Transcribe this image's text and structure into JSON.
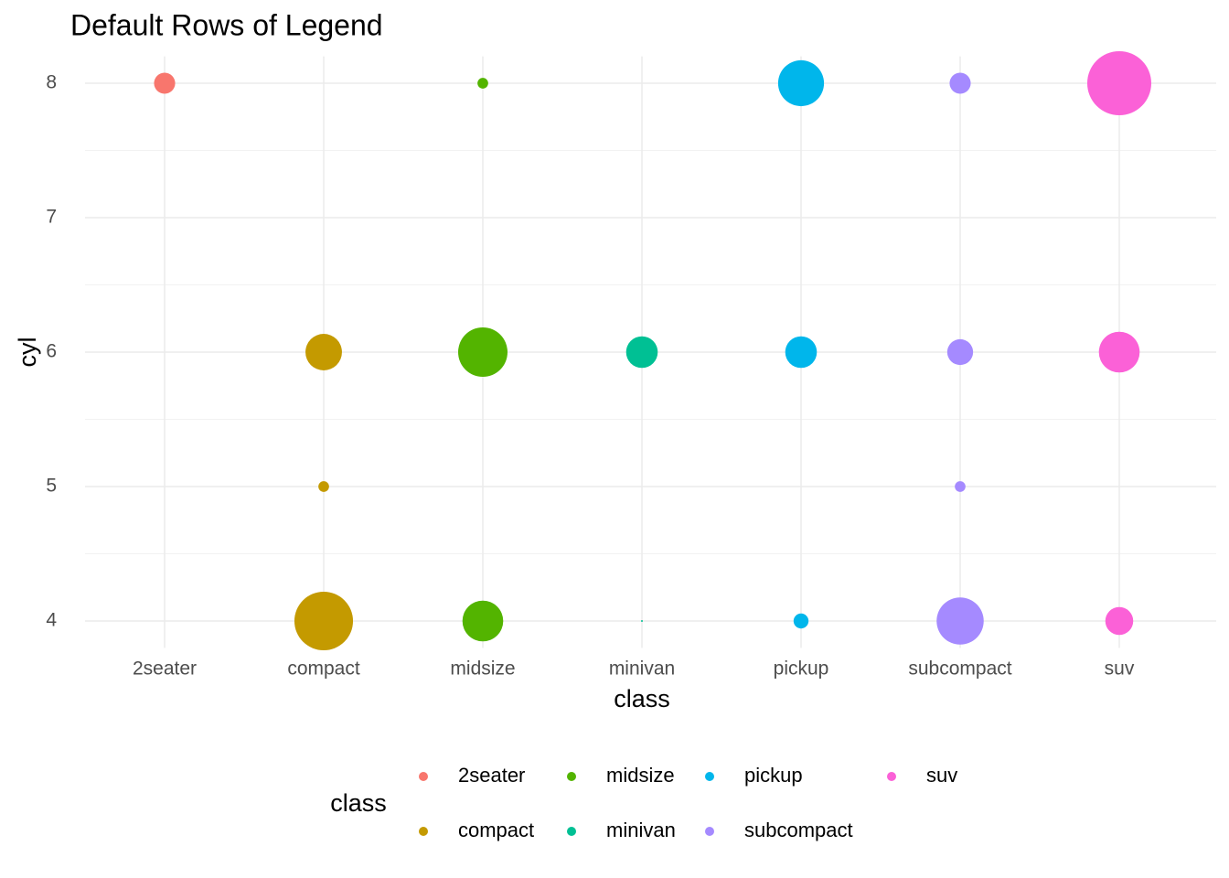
{
  "chart_data": {
    "type": "scatter",
    "title": "Default Rows of Legend",
    "x_label": "class",
    "y_label": "cyl",
    "legend_title": "class",
    "legend_position": "bottom",
    "categories": [
      "2seater",
      "compact",
      "midsize",
      "minivan",
      "pickup",
      "subcompact",
      "suv"
    ],
    "ylim": [
      3.8,
      8.2
    ],
    "yticks": [
      4,
      5,
      6,
      7,
      8
    ],
    "grid": true,
    "series": [
      {
        "name": "2seater",
        "color": "#F8766D",
        "x": [
          "2seater"
        ],
        "values": [
          8
        ],
        "sizes": [
          5
        ]
      },
      {
        "name": "compact",
        "color": "#C49A00",
        "x": [
          "compact",
          "compact",
          "compact"
        ],
        "values": [
          4,
          5,
          6
        ],
        "sizes": [
          32,
          2,
          13
        ]
      },
      {
        "name": "midsize",
        "color": "#53B400",
        "x": [
          "midsize",
          "midsize",
          "midsize"
        ],
        "values": [
          4,
          6,
          8
        ],
        "sizes": [
          16,
          23,
          2
        ]
      },
      {
        "name": "minivan",
        "color": "#00C094",
        "x": [
          "minivan",
          "minivan"
        ],
        "values": [
          4,
          6
        ],
        "sizes": [
          1,
          10
        ]
      },
      {
        "name": "pickup",
        "color": "#00B6EB",
        "x": [
          "pickup",
          "pickup",
          "pickup"
        ],
        "values": [
          4,
          6,
          8
        ],
        "sizes": [
          3,
          10,
          20
        ]
      },
      {
        "name": "subcompact",
        "color": "#A58AFF",
        "x": [
          "subcompact",
          "subcompact",
          "subcompact",
          "subcompact"
        ],
        "values": [
          4,
          5,
          6,
          8
        ],
        "sizes": [
          21,
          2,
          7,
          5
        ]
      },
      {
        "name": "suv",
        "color": "#FB61D7",
        "x": [
          "suv",
          "suv",
          "suv"
        ],
        "values": [
          4,
          6,
          8
        ],
        "sizes": [
          8,
          16,
          38
        ]
      }
    ]
  }
}
